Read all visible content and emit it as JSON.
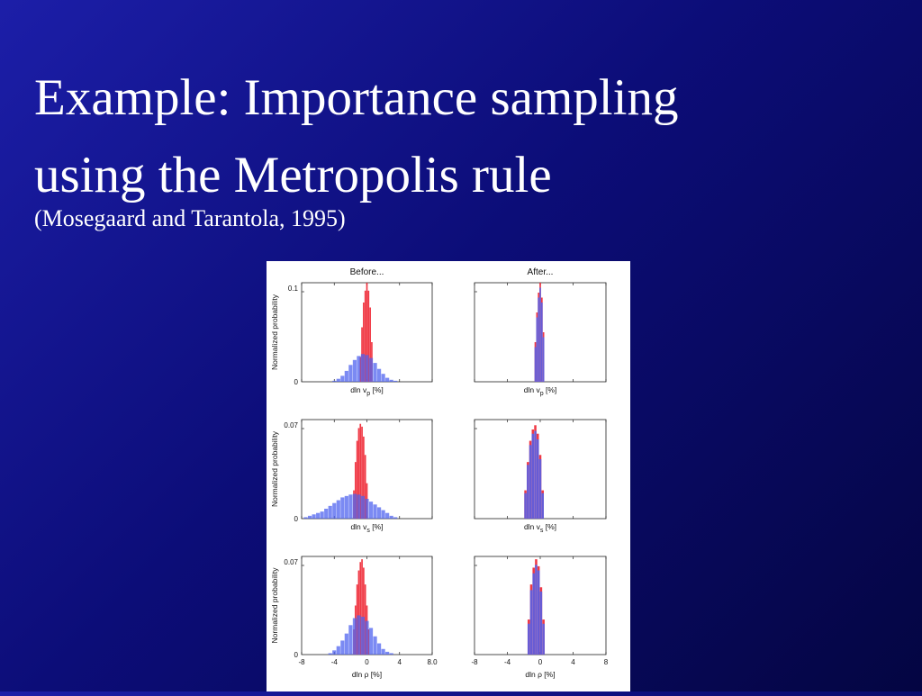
{
  "slide": {
    "title_line1": "Example: Importance sampling",
    "title_line2": "using the Metropolis rule",
    "subtitle": "(Mosegaard and Tarantola, 1995)"
  },
  "colors": {
    "background_light": "#1c1ea8",
    "background_dark": "#040542",
    "before_red": "#ee2230",
    "prior_blue": "#4f63ef"
  },
  "chart_data": {
    "type": "bar",
    "column_titles": [
      "Before...",
      "After..."
    ],
    "x_range": [
      -8,
      8
    ],
    "x_ticks": [
      -8,
      -4,
      0,
      4,
      8
    ],
    "x_tick_labels_left": [
      "-8",
      "-4",
      "0",
      "4",
      "8.0"
    ],
    "x_tick_labels_right": [
      "-8",
      "-4",
      "0",
      "4",
      "8"
    ],
    "ylabel": "Normalized probability",
    "rows": [
      {
        "xlabel_main": "dln v",
        "xlabel_sub": "p",
        "xlabel_unit": "[%]",
        "ymax": 0.1,
        "y_tick_labels": [
          "0",
          "0.1"
        ],
        "panels": [
          {
            "column": "Before...",
            "series": [
              {
                "color": "red",
                "x": [
                  -0.8,
                  -0.6,
                  -0.4,
                  -0.2,
                  0.0,
                  0.2,
                  0.4,
                  0.6
                ],
                "values": [
                  0.025,
                  0.055,
                  0.08,
                  0.092,
                  0.1,
                  0.092,
                  0.075,
                  0.04
                ]
              },
              {
                "color": "blue",
                "x": [
                  -4.0,
                  -3.5,
                  -3.0,
                  -2.5,
                  -2.0,
                  -1.5,
                  -1.0,
                  -0.5,
                  0.0,
                  0.5,
                  1.0,
                  1.5,
                  2.0,
                  2.5,
                  3.0,
                  3.5
                ],
                "values": [
                  0.001,
                  0.003,
                  0.006,
                  0.011,
                  0.017,
                  0.022,
                  0.026,
                  0.028,
                  0.027,
                  0.024,
                  0.019,
                  0.013,
                  0.008,
                  0.004,
                  0.002,
                  0.001
                ]
              }
            ]
          },
          {
            "column": "After...",
            "series": [
              {
                "color": "red",
                "x": [
                  -0.6,
                  -0.4,
                  -0.2,
                  0.0,
                  0.2,
                  0.4
                ],
                "values": [
                  0.04,
                  0.07,
                  0.09,
                  0.1,
                  0.085,
                  0.05
                ]
              },
              {
                "color": "blue",
                "x": [
                  -0.6,
                  -0.4,
                  -0.2,
                  0.0,
                  0.2,
                  0.4
                ],
                "values": [
                  0.035,
                  0.065,
                  0.085,
                  0.095,
                  0.08,
                  0.045
                ]
              }
            ]
          }
        ]
      },
      {
        "xlabel_main": "dln v",
        "xlabel_sub": "s",
        "xlabel_unit": "[%]",
        "ymax": 0.07,
        "y_tick_labels": [
          "0",
          "0.07"
        ],
        "panels": [
          {
            "column": "Before...",
            "series": [
              {
                "color": "red",
                "x": [
                  -1.6,
                  -1.4,
                  -1.2,
                  -1.0,
                  -0.8,
                  -0.6,
                  -0.4,
                  -0.2,
                  0.0
                ],
                "values": [
                  0.02,
                  0.04,
                  0.055,
                  0.064,
                  0.067,
                  0.065,
                  0.058,
                  0.045,
                  0.025
                ]
              },
              {
                "color": "blue",
                "x": [
                  -7.5,
                  -7.0,
                  -6.5,
                  -6.0,
                  -5.5,
                  -5.0,
                  -4.5,
                  -4.0,
                  -3.5,
                  -3.0,
                  -2.5,
                  -2.0,
                  -1.5,
                  -1.0,
                  -0.5,
                  0.0,
                  0.5,
                  1.0,
                  1.5,
                  2.0,
                  2.5,
                  3.0,
                  3.5
                ],
                "values": [
                  0.001,
                  0.002,
                  0.003,
                  0.004,
                  0.005,
                  0.007,
                  0.009,
                  0.011,
                  0.013,
                  0.015,
                  0.016,
                  0.017,
                  0.0175,
                  0.017,
                  0.016,
                  0.014,
                  0.012,
                  0.01,
                  0.008,
                  0.006,
                  0.004,
                  0.002,
                  0.001
                ]
              }
            ]
          },
          {
            "column": "After...",
            "series": [
              {
                "color": "red",
                "x": [
                  -1.8,
                  -1.5,
                  -1.2,
                  -0.9,
                  -0.6,
                  -0.3,
                  0.0,
                  0.3
                ],
                "values": [
                  0.02,
                  0.04,
                  0.055,
                  0.063,
                  0.066,
                  0.06,
                  0.045,
                  0.02
                ]
              },
              {
                "color": "blue",
                "x": [
                  -1.8,
                  -1.5,
                  -1.2,
                  -0.9,
                  -0.6,
                  -0.3,
                  0.0,
                  0.3
                ],
                "values": [
                  0.018,
                  0.038,
                  0.052,
                  0.06,
                  0.062,
                  0.056,
                  0.042,
                  0.018
                ]
              }
            ]
          }
        ]
      },
      {
        "xlabel_main": "dln ρ",
        "xlabel_sub": "",
        "xlabel_unit": "[%]",
        "ymax": 0.07,
        "y_tick_labels": [
          "0",
          "0.07"
        ],
        "panels": [
          {
            "column": "Before...",
            "series": [
              {
                "color": "red",
                "x": [
                  -1.6,
                  -1.4,
                  -1.2,
                  -1.0,
                  -0.8,
                  -0.6,
                  -0.4,
                  -0.2,
                  0.0,
                  0.2
                ],
                "values": [
                  0.018,
                  0.035,
                  0.05,
                  0.06,
                  0.066,
                  0.068,
                  0.062,
                  0.05,
                  0.035,
                  0.018
                ]
              },
              {
                "color": "blue",
                "x": [
                  -4.5,
                  -4.0,
                  -3.5,
                  -3.0,
                  -2.5,
                  -2.0,
                  -1.5,
                  -1.0,
                  -0.5,
                  0.0,
                  0.5,
                  1.0,
                  1.5,
                  2.0,
                  2.5,
                  3.0
                ],
                "values": [
                  0.001,
                  0.003,
                  0.006,
                  0.01,
                  0.015,
                  0.021,
                  0.026,
                  0.028,
                  0.027,
                  0.024,
                  0.019,
                  0.013,
                  0.008,
                  0.004,
                  0.002,
                  0.001
                ]
              }
            ]
          },
          {
            "column": "After...",
            "series": [
              {
                "color": "red",
                "x": [
                  -1.4,
                  -1.1,
                  -0.8,
                  -0.5,
                  -0.2,
                  0.1,
                  0.4
                ],
                "values": [
                  0.025,
                  0.05,
                  0.062,
                  0.068,
                  0.063,
                  0.048,
                  0.025
                ]
              },
              {
                "color": "blue",
                "x": [
                  -1.4,
                  -1.1,
                  -0.8,
                  -0.5,
                  -0.2,
                  0.1,
                  0.4
                ],
                "values": [
                  0.022,
                  0.046,
                  0.058,
                  0.064,
                  0.06,
                  0.045,
                  0.022
                ]
              }
            ]
          }
        ]
      }
    ]
  }
}
